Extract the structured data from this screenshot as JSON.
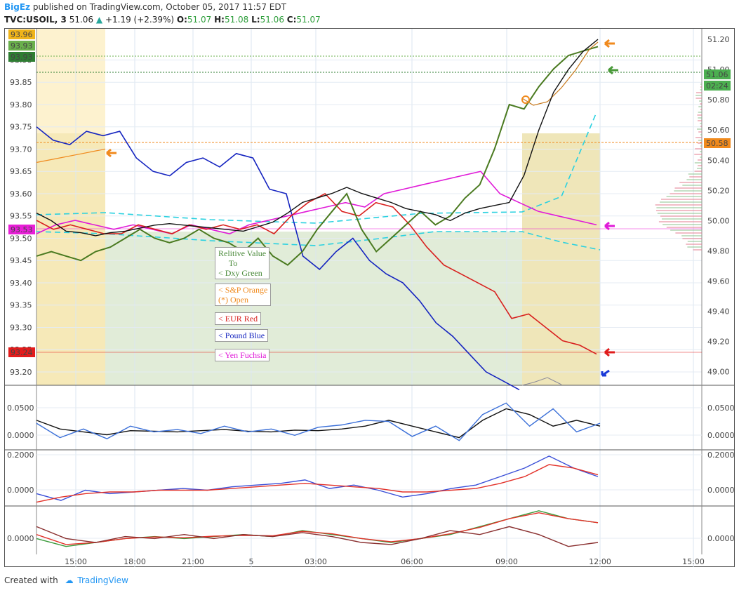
{
  "header": {
    "author": "BigEz",
    "published": "published on TradingView.com, October 05, 2017 11:57 EDT",
    "symbol": "TVC:USOIL, 3",
    "last": "51.06",
    "change": "+1.19 (+2.39%)",
    "o_label": "O:",
    "o_value": "51.07",
    "h_label": "H:",
    "h_value": "51.08",
    "l_label": "L:",
    "l_value": "51.06",
    "c_label": "C:",
    "c_value": "51.07"
  },
  "footer": {
    "created_with": "Created with",
    "brand": "TradingView"
  },
  "legend": [
    {
      "text": "Relitive Value\n     To\n< Dxy Green",
      "color": "#4a8a3a"
    },
    {
      "text": "< S&P Orange\n(*) Open",
      "color": "#f08a1d"
    },
    {
      "text": "< EUR Red",
      "color": "#d8201e"
    },
    {
      "text": "< Pound Blue",
      "color": "#1524c0"
    },
    {
      "text": "< Yen Fuchsia",
      "color": "#e01ad8"
    }
  ],
  "chart_data": [
    {
      "type": "line",
      "pane": "main",
      "x_ticks": [
        "15:00",
        "18:00",
        "21:00",
        "5",
        "03:00",
        "06:00",
        "09:00",
        "12:00",
        "15:00"
      ],
      "left_axis": {
        "ticks": [
          "93.90",
          "93.85",
          "93.80",
          "93.75",
          "93.70",
          "93.65",
          "93.60",
          "93.55",
          "93.50",
          "93.45",
          "93.40",
          "93.35",
          "93.30",
          "93.25",
          "93.20"
        ],
        "range": [
          93.17,
          93.97
        ]
      },
      "right_axis": {
        "ticks": [
          "51.20",
          "51.00",
          "50.80",
          "50.60",
          "50.40",
          "50.20",
          "50.00",
          "49.80",
          "49.60",
          "49.40",
          "49.20",
          "49.00"
        ],
        "range": [
          48.91,
          51.27
        ]
      },
      "left_badges": [
        {
          "label": "93.96",
          "color": "#f0b419"
        },
        {
          "label": "93.93",
          "color": "#6ab04c"
        },
        {
          "label": "93.93",
          "color": "#2e7d32"
        },
        {
          "label": "93.53",
          "color": "#e91ed8"
        },
        {
          "label": "93.24",
          "color": "#e31b1b"
        }
      ],
      "right_badges": [
        {
          "label": "51.06",
          "color": "#4caf50"
        },
        {
          "label": "02:24",
          "color": "#4caf50"
        },
        {
          "label": "50.58",
          "color": "#f08a1d"
        }
      ],
      "series": [
        {
          "name": "USOIL",
          "color": "#111111",
          "values": [
            50.05,
            50.0,
            49.93,
            49.92,
            49.9,
            49.92,
            49.93,
            49.95,
            49.97,
            49.98,
            49.97,
            49.96,
            49.95,
            49.94,
            49.93,
            49.96,
            49.99,
            50.05,
            50.12,
            50.15,
            50.18,
            50.22,
            50.18,
            50.15,
            50.12,
            50.08,
            50.06,
            50.04,
            50.0,
            50.05,
            50.08,
            50.1,
            50.12,
            50.3,
            50.6,
            50.85,
            51.0,
            51.12,
            51.2
          ]
        },
        {
          "name": "Dxy Green",
          "color": "#4a7a20",
          "values": [
            93.46,
            93.47,
            93.46,
            93.45,
            93.47,
            93.48,
            93.5,
            93.52,
            93.5,
            93.49,
            93.5,
            93.52,
            93.5,
            93.49,
            93.47,
            93.5,
            93.46,
            93.44,
            93.47,
            93.52,
            93.56,
            93.6,
            93.52,
            93.47,
            93.5,
            93.53,
            93.56,
            93.53,
            93.55,
            93.59,
            93.62,
            93.7,
            93.8,
            93.79,
            93.84,
            93.88,
            93.91,
            93.92,
            93.93
          ]
        },
        {
          "name": "S&P Orange",
          "color": "#f08a1d",
          "values": [
            93.67,
            93.68,
            93.69,
            93.7
          ]
        },
        {
          "name": "EUR Red",
          "color": "#d8201e",
          "values": [
            93.54,
            93.52,
            93.53,
            93.52,
            93.51,
            93.51,
            93.53,
            93.52,
            93.51,
            93.53,
            93.52,
            93.53,
            93.52,
            93.53,
            93.51,
            93.55,
            93.58,
            93.6,
            93.56,
            93.55,
            93.58,
            93.57,
            93.53,
            93.48,
            93.44,
            93.42,
            93.4,
            93.38,
            93.32,
            93.33,
            93.3,
            93.27,
            93.26,
            93.24
          ]
        },
        {
          "name": "Pound Blue",
          "color": "#1524c0",
          "values": [
            93.75,
            93.72,
            93.71,
            93.74,
            93.73,
            93.74,
            93.68,
            93.65,
            93.64,
            93.67,
            93.68,
            93.66,
            93.69,
            93.68,
            93.61,
            93.6,
            93.46,
            93.43,
            93.47,
            93.5,
            93.45,
            93.42,
            93.4,
            93.36,
            93.31,
            93.28,
            93.24,
            93.2,
            93.18,
            93.16
          ]
        },
        {
          "name": "Yen Fuchsia",
          "color": "#e01ad8",
          "values": [
            93.51,
            93.53,
            93.54,
            93.53,
            93.52,
            93.53,
            93.52,
            93.51,
            93.53,
            93.52,
            93.51,
            93.53,
            93.54,
            93.55,
            93.56,
            93.57,
            93.58,
            93.57,
            93.6,
            93.61,
            93.62,
            93.63,
            93.64,
            93.65,
            93.6,
            93.58,
            93.56,
            93.55,
            93.54,
            93.53
          ]
        }
      ]
    },
    {
      "type": "line",
      "pane": "oscillator-1",
      "y_ticks": [
        "0.0500",
        "0.0000"
      ],
      "series": [
        {
          "color": "#111111",
          "values": [
            0.02,
            0.005,
            0.0,
            -0.005,
            0.002,
            0.001,
            0.0,
            0.002,
            0.004,
            0.001,
            0.0,
            0.003,
            0.002,
            0.005,
            0.01,
            0.02,
            0.01,
            0.0,
            -0.01,
            0.02,
            0.04,
            0.03,
            0.01,
            0.02,
            0.01
          ]
        },
        {
          "color": "#3a6fd8",
          "values": [
            0.015,
            -0.01,
            0.005,
            -0.012,
            0.01,
            0.0,
            0.004,
            -0.003,
            0.01,
            0.0,
            0.005,
            -0.006,
            0.008,
            0.012,
            0.02,
            0.018,
            -0.008,
            0.01,
            -0.015,
            0.03,
            0.05,
            0.01,
            0.04,
            0.0,
            0.015
          ]
        }
      ]
    },
    {
      "type": "line",
      "pane": "oscillator-2",
      "y_ticks": [
        "0.2000",
        "0.0000"
      ],
      "series": [
        {
          "color": "#3a4fd8",
          "values": [
            0.0,
            -0.04,
            0.02,
            0.0,
            0.01,
            0.02,
            0.03,
            0.02,
            0.04,
            0.05,
            0.06,
            0.08,
            0.03,
            0.05,
            0.02,
            -0.02,
            0.0,
            0.03,
            0.05,
            0.1,
            0.15,
            0.22,
            0.15,
            0.1
          ]
        },
        {
          "color": "#e3322a",
          "values": [
            -0.05,
            -0.02,
            0.0,
            0.01,
            0.01,
            0.02,
            0.02,
            0.02,
            0.03,
            0.04,
            0.05,
            0.06,
            0.05,
            0.04,
            0.03,
            0.01,
            0.01,
            0.02,
            0.03,
            0.06,
            0.1,
            0.17,
            0.15,
            0.11
          ]
        }
      ]
    },
    {
      "type": "line",
      "pane": "oscillator-3",
      "y_ticks": [
        "0.0000"
      ],
      "series": [
        {
          "color": "#3a9a3a",
          "values": [
            0.0,
            -0.02,
            -0.01,
            0.0,
            0.005,
            0.0,
            0.005,
            0.01,
            0.005,
            0.02,
            0.01,
            0.0,
            -0.01,
            0.0,
            0.01,
            0.03,
            0.05,
            0.07,
            0.05,
            0.04
          ]
        },
        {
          "color": "#e3322a",
          "values": [
            0.01,
            -0.015,
            -0.01,
            0.0,
            0.004,
            0.002,
            0.006,
            0.008,
            0.007,
            0.018,
            0.012,
            0.0,
            -0.008,
            0.0,
            0.012,
            0.028,
            0.05,
            0.065,
            0.05,
            0.04
          ]
        },
        {
          "color": "#8a3030",
          "values": [
            0.03,
            0.0,
            -0.01,
            0.005,
            0.0,
            0.01,
            0.0,
            0.01,
            0.005,
            0.015,
            0.005,
            -0.01,
            -0.015,
            0.0,
            0.02,
            0.01,
            0.03,
            0.01,
            -0.02,
            -0.01
          ]
        }
      ]
    }
  ]
}
